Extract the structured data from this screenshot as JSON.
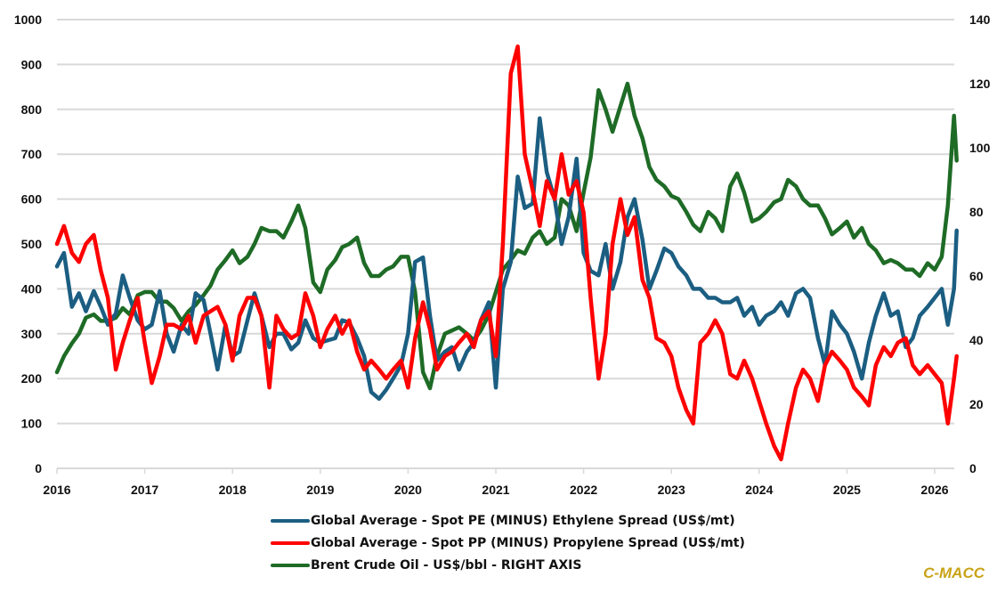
{
  "chart_data": {
    "type": "line",
    "title": "",
    "xlabel": "",
    "ylabel": "",
    "y2label": "",
    "xlim": [
      2016,
      2026.25
    ],
    "ylim": [
      0,
      1000
    ],
    "y2lim": [
      0,
      140
    ],
    "grid": true,
    "legend_position": "bottom",
    "x_ticks": [
      "2016",
      "2017",
      "2018",
      "2019",
      "2020",
      "2021",
      "2022",
      "2023",
      "2024",
      "2025",
      "2026"
    ],
    "y_ticks": [
      "0",
      "100",
      "200",
      "300",
      "400",
      "500",
      "600",
      "700",
      "800",
      "900",
      "1000"
    ],
    "y2_ticks": [
      "0",
      "20",
      "40",
      "60",
      "80",
      "100",
      "120",
      "140"
    ],
    "series": [
      {
        "name": "Global Average - Spot PE (MINUS) Ethylene Spread (US$/mt)",
        "color": "#1b5e82",
        "axis": "left",
        "x": [
          2016.0,
          2016.08,
          2016.17,
          2016.25,
          2016.33,
          2016.42,
          2016.5,
          2016.58,
          2016.67,
          2016.75,
          2016.83,
          2016.92,
          2017.0,
          2017.08,
          2017.17,
          2017.25,
          2017.33,
          2017.42,
          2017.5,
          2017.58,
          2017.67,
          2017.75,
          2017.83,
          2017.92,
          2018.0,
          2018.08,
          2018.17,
          2018.25,
          2018.33,
          2018.42,
          2018.5,
          2018.58,
          2018.67,
          2018.75,
          2018.83,
          2018.92,
          2019.0,
          2019.08,
          2019.17,
          2019.25,
          2019.33,
          2019.42,
          2019.5,
          2019.58,
          2019.67,
          2019.75,
          2019.83,
          2019.92,
          2020.0,
          2020.08,
          2020.17,
          2020.25,
          2020.33,
          2020.42,
          2020.5,
          2020.58,
          2020.67,
          2020.75,
          2020.83,
          2020.92,
          2021.0,
          2021.08,
          2021.17,
          2021.25,
          2021.33,
          2021.42,
          2021.5,
          2021.58,
          2021.67,
          2021.75,
          2021.83,
          2021.92,
          2022.0,
          2022.08,
          2022.17,
          2022.25,
          2022.33,
          2022.42,
          2022.5,
          2022.58,
          2022.67,
          2022.75,
          2022.83,
          2022.92,
          2023.0,
          2023.08,
          2023.17,
          2023.25,
          2023.33,
          2023.42,
          2023.5,
          2023.58,
          2023.67,
          2023.75,
          2023.83,
          2023.92,
          2024.0,
          2024.08,
          2024.17,
          2024.25,
          2024.33,
          2024.42,
          2024.5,
          2024.58,
          2024.67,
          2024.75,
          2024.83,
          2024.92,
          2025.0,
          2025.08,
          2025.17,
          2025.25,
          2025.33,
          2025.42,
          2025.5,
          2025.58,
          2025.67,
          2025.75,
          2025.83,
          2025.92,
          2026.0,
          2026.08,
          2026.15,
          2026.22,
          2026.25
        ],
        "y": [
          450,
          480,
          360,
          390,
          350,
          395,
          360,
          320,
          345,
          430,
          380,
          330,
          310,
          320,
          395,
          300,
          260,
          320,
          300,
          390,
          375,
          300,
          220,
          320,
          250,
          260,
          330,
          390,
          340,
          270,
          300,
          300,
          265,
          280,
          330,
          290,
          280,
          285,
          290,
          330,
          325,
          290,
          250,
          170,
          155,
          175,
          200,
          230,
          300,
          460,
          470,
          340,
          240,
          260,
          270,
          220,
          260,
          280,
          330,
          370,
          180,
          400,
          460,
          650,
          580,
          590,
          780,
          660,
          600,
          500,
          560,
          690,
          480,
          440,
          430,
          500,
          400,
          460,
          560,
          600,
          510,
          400,
          440,
          490,
          480,
          450,
          430,
          400,
          400,
          380,
          380,
          370,
          370,
          380,
          340,
          360,
          320,
          340,
          350,
          370,
          340,
          390,
          400,
          380,
          290,
          230,
          350,
          320,
          300,
          260,
          200,
          280,
          340,
          390,
          340,
          350,
          270,
          290,
          340,
          360,
          380,
          400,
          320,
          400,
          530
        ]
      },
      {
        "name": "Global Average - Spot PP (MINUS) Propylene Spread (US$/mt)",
        "color": "#ff0000",
        "axis": "left",
        "x": [
          2016.0,
          2016.08,
          2016.17,
          2016.25,
          2016.33,
          2016.42,
          2016.5,
          2016.58,
          2016.67,
          2016.75,
          2016.83,
          2016.92,
          2017.0,
          2017.08,
          2017.17,
          2017.25,
          2017.33,
          2017.42,
          2017.5,
          2017.58,
          2017.67,
          2017.75,
          2017.83,
          2017.92,
          2018.0,
          2018.08,
          2018.17,
          2018.25,
          2018.33,
          2018.42,
          2018.5,
          2018.58,
          2018.67,
          2018.75,
          2018.83,
          2018.92,
          2019.0,
          2019.08,
          2019.17,
          2019.25,
          2019.33,
          2019.42,
          2019.5,
          2019.58,
          2019.67,
          2019.75,
          2019.83,
          2019.92,
          2020.0,
          2020.08,
          2020.17,
          2020.25,
          2020.33,
          2020.42,
          2020.5,
          2020.58,
          2020.67,
          2020.75,
          2020.83,
          2020.92,
          2021.0,
          2021.08,
          2021.17,
          2021.25,
          2021.33,
          2021.42,
          2021.5,
          2021.58,
          2021.67,
          2021.75,
          2021.83,
          2021.92,
          2022.0,
          2022.08,
          2022.17,
          2022.25,
          2022.33,
          2022.42,
          2022.5,
          2022.58,
          2022.67,
          2022.75,
          2022.83,
          2022.92,
          2023.0,
          2023.08,
          2023.17,
          2023.25,
          2023.33,
          2023.42,
          2023.5,
          2023.58,
          2023.67,
          2023.75,
          2023.83,
          2023.92,
          2024.0,
          2024.08,
          2024.17,
          2024.25,
          2024.33,
          2024.42,
          2024.5,
          2024.58,
          2024.67,
          2024.75,
          2024.83,
          2024.92,
          2025.0,
          2025.08,
          2025.17,
          2025.25,
          2025.33,
          2025.42,
          2025.5,
          2025.58,
          2025.67,
          2025.75,
          2025.83,
          2025.92,
          2026.0,
          2026.08,
          2026.15,
          2026.22,
          2026.25
        ],
        "y": [
          500,
          540,
          480,
          460,
          500,
          520,
          440,
          380,
          220,
          280,
          330,
          380,
          280,
          190,
          250,
          320,
          320,
          310,
          340,
          280,
          340,
          350,
          360,
          320,
          240,
          340,
          380,
          380,
          340,
          180,
          340,
          310,
          290,
          300,
          390,
          340,
          270,
          310,
          340,
          300,
          330,
          260,
          220,
          240,
          220,
          200,
          220,
          240,
          180,
          290,
          370,
          310,
          220,
          250,
          260,
          280,
          300,
          270,
          330,
          350,
          250,
          500,
          880,
          940,
          700,
          620,
          540,
          640,
          600,
          700,
          610,
          640,
          570,
          380,
          200,
          300,
          500,
          600,
          520,
          560,
          420,
          380,
          290,
          280,
          250,
          180,
          130,
          100,
          280,
          300,
          330,
          300,
          210,
          200,
          240,
          200,
          150,
          100,
          50,
          20,
          100,
          180,
          220,
          200,
          150,
          230,
          260,
          240,
          220,
          180,
          160,
          140,
          230,
          270,
          250,
          280,
          290,
          230,
          210,
          230,
          210,
          190,
          100,
          200,
          250
        ]
      },
      {
        "name": "Brent Crude Oil - US$/bbl - RIGHT AXIS",
        "color": "#1e6b26",
        "axis": "right",
        "x": [
          2016.0,
          2016.08,
          2016.17,
          2016.25,
          2016.33,
          2016.42,
          2016.5,
          2016.58,
          2016.67,
          2016.75,
          2016.83,
          2016.92,
          2017.0,
          2017.08,
          2017.17,
          2017.25,
          2017.33,
          2017.42,
          2017.5,
          2017.58,
          2017.67,
          2017.75,
          2017.83,
          2017.92,
          2018.0,
          2018.08,
          2018.17,
          2018.25,
          2018.33,
          2018.42,
          2018.5,
          2018.58,
          2018.67,
          2018.75,
          2018.83,
          2018.92,
          2019.0,
          2019.08,
          2019.17,
          2019.25,
          2019.33,
          2019.42,
          2019.5,
          2019.58,
          2019.67,
          2019.75,
          2019.83,
          2019.92,
          2020.0,
          2020.08,
          2020.17,
          2020.25,
          2020.33,
          2020.42,
          2020.5,
          2020.58,
          2020.67,
          2020.75,
          2020.83,
          2020.92,
          2021.0,
          2021.08,
          2021.17,
          2021.25,
          2021.33,
          2021.42,
          2021.5,
          2021.58,
          2021.67,
          2021.75,
          2021.83,
          2021.92,
          2022.0,
          2022.08,
          2022.17,
          2022.25,
          2022.33,
          2022.42,
          2022.5,
          2022.58,
          2022.67,
          2022.75,
          2022.83,
          2022.92,
          2023.0,
          2023.08,
          2023.17,
          2023.25,
          2023.33,
          2023.42,
          2023.5,
          2023.58,
          2023.67,
          2023.75,
          2023.83,
          2023.92,
          2024.0,
          2024.08,
          2024.17,
          2024.25,
          2024.33,
          2024.42,
          2024.5,
          2024.58,
          2024.67,
          2024.75,
          2024.83,
          2024.92,
          2025.0,
          2025.08,
          2025.17,
          2025.25,
          2025.33,
          2025.42,
          2025.5,
          2025.58,
          2025.67,
          2025.75,
          2025.83,
          2025.92,
          2026.0,
          2026.08,
          2026.15,
          2026.22,
          2026.25
        ],
        "y": [
          30,
          35,
          39,
          42,
          47,
          48,
          46,
          46,
          47,
          50,
          48,
          54,
          55,
          55,
          52,
          52,
          50,
          46,
          49,
          51,
          54,
          57,
          62,
          65,
          68,
          64,
          66,
          70,
          75,
          74,
          74,
          72,
          77,
          82,
          75,
          58,
          55,
          62,
          65,
          69,
          70,
          72,
          64,
          60,
          60,
          62,
          63,
          66,
          66,
          55,
          30,
          25,
          35,
          42,
          43,
          44,
          42,
          40,
          43,
          48,
          55,
          62,
          65,
          68,
          67,
          72,
          74,
          70,
          72,
          84,
          82,
          74,
          86,
          97,
          118,
          112,
          105,
          113,
          120,
          110,
          103,
          94,
          90,
          88,
          85,
          84,
          80,
          76,
          74,
          80,
          78,
          74,
          88,
          92,
          86,
          77,
          78,
          80,
          83,
          84,
          90,
          88,
          84,
          82,
          82,
          78,
          73,
          75,
          77,
          72,
          75,
          70,
          68,
          64,
          65,
          64,
          62,
          62,
          60,
          64,
          62,
          66,
          82,
          110,
          96
        ]
      }
    ]
  },
  "legend": {
    "items": [
      {
        "label": "Global Average - Spot PE (MINUS) Ethylene Spread (US$/mt)",
        "color": "#1b5e82"
      },
      {
        "label": "Global Average - Spot PP (MINUS) Propylene Spread (US$/mt)",
        "color": "#ff0000"
      },
      {
        "label": "Brent Crude Oil - US$/bbl - RIGHT AXIS",
        "color": "#1e6b26"
      }
    ]
  },
  "branding": {
    "text": "C-MACC",
    "color": "#c9a316"
  }
}
